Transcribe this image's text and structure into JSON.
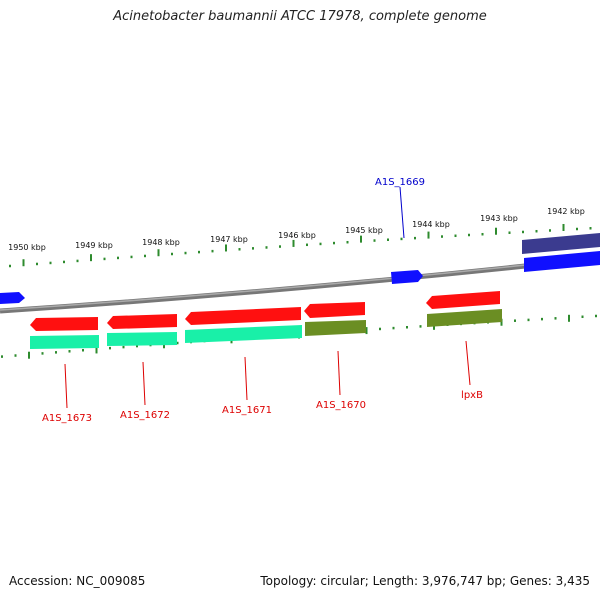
{
  "title": "Acinetobacter baumannii ATCC 17978, complete genome",
  "accession_text": "Accession: NC_009085",
  "summary_text": "Topology: circular; Length: 3,976,747 bp; Genes: 3,435",
  "colors": {
    "backbone": "#8a8a8a",
    "ticks": "#2e8b2e",
    "tick_labels": "#111111",
    "gene_red": "#ff1010",
    "gene_cyan": "#19f0a8",
    "gene_olive": "#6b8e23",
    "gene_blue": "#1010ff",
    "gene_navy": "#3b3b8f",
    "label_red": "#dd0000",
    "label_blue": "#0000cc"
  },
  "scale_labels": [
    "1950 kbp",
    "1949 kbp",
    "1948 kbp",
    "1947 kbp",
    "1946 kbp",
    "1945 kbp",
    "1944 kbp",
    "1943 kbp",
    "1942 kbp"
  ],
  "gene_labels": [
    {
      "text": "A1S_1669",
      "color": "blue"
    },
    {
      "text": "A1S_1673",
      "color": "red"
    },
    {
      "text": "A1S_1672",
      "color": "red"
    },
    {
      "text": "A1S_1671",
      "color": "red"
    },
    {
      "text": "A1S_1670",
      "color": "red"
    },
    {
      "text": "lpxB",
      "color": "red"
    }
  ]
}
